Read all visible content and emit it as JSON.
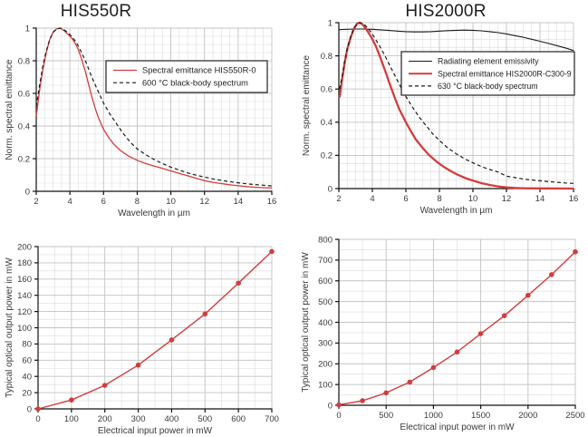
{
  "colors": {
    "red": "#d43c3c",
    "black": "#1a1a1a",
    "axis": "#111111",
    "grid_minor": "#dcdcdc",
    "grid_major": "#c4c4c4",
    "text": "#3a3a3a",
    "legend_text": "#222222"
  },
  "chart_data": [
    {
      "id": "his550r-spectrum",
      "type": "line",
      "title": "HIS550R",
      "xlabel": "Wavelength in µm",
      "ylabel": "Norm. spectral emittance",
      "xlim": [
        2,
        16
      ],
      "ylim": [
        0,
        1
      ],
      "xticks": [
        2,
        4,
        6,
        8,
        10,
        12,
        14,
        16
      ],
      "yticks": [
        0,
        0.2,
        0.4,
        0.6,
        0.8,
        1
      ],
      "ytick_labels": [
        "0",
        "0.2",
        "0.4",
        "0.6",
        "0.8",
        "1"
      ],
      "x_minor": 0.5,
      "y_minor": 0.05,
      "grid": true,
      "legend_visible": true,
      "legend_position": "inside upper right",
      "series": [
        {
          "name": "Spectral emittance HIS550R-0",
          "color": "#d43c3c",
          "dash": false,
          "width": 1.3,
          "markers": false,
          "points": [
            [
              2,
              0.46
            ],
            [
              2.2,
              0.62
            ],
            [
              2.4,
              0.75
            ],
            [
              2.6,
              0.85
            ],
            [
              2.8,
              0.93
            ],
            [
              3,
              0.975
            ],
            [
              3.2,
              0.995
            ],
            [
              3.35,
              1.0
            ],
            [
              3.5,
              0.995
            ],
            [
              3.7,
              0.98
            ],
            [
              3.9,
              0.96
            ],
            [
              4.1,
              0.94
            ],
            [
              4.3,
              0.91
            ],
            [
              4.5,
              0.87
            ],
            [
              4.7,
              0.81
            ],
            [
              4.9,
              0.74
            ],
            [
              5.1,
              0.66
            ],
            [
              5.3,
              0.58
            ],
            [
              5.5,
              0.51
            ],
            [
              5.7,
              0.45
            ],
            [
              6,
              0.38
            ],
            [
              6.3,
              0.33
            ],
            [
              6.6,
              0.29
            ],
            [
              7,
              0.25
            ],
            [
              7.5,
              0.215
            ],
            [
              8,
              0.19
            ],
            [
              8.5,
              0.17
            ],
            [
              9,
              0.155
            ],
            [
              9.5,
              0.14
            ],
            [
              10,
              0.125
            ],
            [
              10.5,
              0.11
            ],
            [
              11,
              0.095
            ],
            [
              11.5,
              0.08
            ],
            [
              12,
              0.065
            ],
            [
              12.5,
              0.055
            ],
            [
              13,
              0.047
            ],
            [
              13.5,
              0.04
            ],
            [
              14,
              0.034
            ],
            [
              14.5,
              0.029
            ],
            [
              15,
              0.025
            ],
            [
              15.5,
              0.022
            ],
            [
              16,
              0.02
            ]
          ]
        },
        {
          "name": "600 °C black-body spectrum",
          "color": "#1a1a1a",
          "dash": true,
          "width": 1.2,
          "markers": false,
          "points": [
            [
              2,
              0.52
            ],
            [
              2.2,
              0.65
            ],
            [
              2.4,
              0.77
            ],
            [
              2.6,
              0.86
            ],
            [
              2.8,
              0.93
            ],
            [
              3,
              0.975
            ],
            [
              3.25,
              0.995
            ],
            [
              3.45,
              1.0
            ],
            [
              3.65,
              0.99
            ],
            [
              3.85,
              0.975
            ],
            [
              4.1,
              0.95
            ],
            [
              4.4,
              0.91
            ],
            [
              4.7,
              0.85
            ],
            [
              5,
              0.78
            ],
            [
              5.3,
              0.7
            ],
            [
              5.6,
              0.63
            ],
            [
              6,
              0.54
            ],
            [
              6.4,
              0.47
            ],
            [
              6.8,
              0.41
            ],
            [
              7.2,
              0.35
            ],
            [
              7.6,
              0.3
            ],
            [
              8,
              0.26
            ],
            [
              8.5,
              0.225
            ],
            [
              9,
              0.195
            ],
            [
              9.5,
              0.17
            ],
            [
              10,
              0.148
            ],
            [
              10.5,
              0.13
            ],
            [
              11,
              0.113
            ],
            [
              11.5,
              0.099
            ],
            [
              12,
              0.087
            ],
            [
              12.5,
              0.076
            ],
            [
              13,
              0.067
            ],
            [
              13.5,
              0.059
            ],
            [
              14,
              0.052
            ],
            [
              14.5,
              0.046
            ],
            [
              15,
              0.041
            ],
            [
              15.5,
              0.037
            ],
            [
              16,
              0.033
            ]
          ]
        }
      ]
    },
    {
      "id": "his2000r-spectrum",
      "type": "line",
      "title": "HIS2000R",
      "xlabel": "Wavelength in µm",
      "ylabel": "Norm. spectral emittance",
      "xlim": [
        2,
        16
      ],
      "ylim": [
        0,
        1
      ],
      "xticks": [
        2,
        4,
        6,
        8,
        10,
        12,
        14,
        16
      ],
      "yticks": [
        0,
        0.2,
        0.4,
        0.6,
        0.8,
        1
      ],
      "ytick_labels": [
        "0",
        "0.2",
        "0.4",
        "0.6",
        "0.8",
        "1"
      ],
      "x_minor": 0.5,
      "y_minor": 0.05,
      "grid": true,
      "legend_visible": true,
      "legend_position": "inside upper right",
      "series": [
        {
          "name": "Radiating element emissivity",
          "color": "#1a1a1a",
          "dash": false,
          "width": 1.1,
          "markers": false,
          "points": [
            [
              2,
              0.958
            ],
            [
              2.5,
              0.96
            ],
            [
              3,
              0.962
            ],
            [
              3.5,
              0.962
            ],
            [
              4,
              0.96
            ],
            [
              4.5,
              0.957
            ],
            [
              5,
              0.953
            ],
            [
              5.5,
              0.949
            ],
            [
              6,
              0.946
            ],
            [
              6.5,
              0.944
            ],
            [
              7,
              0.944
            ],
            [
              7.5,
              0.946
            ],
            [
              8,
              0.949
            ],
            [
              8.5,
              0.952
            ],
            [
              9,
              0.954
            ],
            [
              9.5,
              0.955
            ],
            [
              10,
              0.954
            ],
            [
              10.5,
              0.951
            ],
            [
              11,
              0.946
            ],
            [
              11.5,
              0.94
            ],
            [
              12,
              0.932
            ],
            [
              12.5,
              0.922
            ],
            [
              13,
              0.912
            ],
            [
              13.5,
              0.9
            ],
            [
              14,
              0.888
            ],
            [
              14.5,
              0.875
            ],
            [
              15,
              0.862
            ],
            [
              15.5,
              0.848
            ],
            [
              16,
              0.832
            ]
          ]
        },
        {
          "name": "Spectral emittance HIS2000R-C300-9",
          "color": "#d43c3c",
          "dash": false,
          "width": 2.3,
          "markers": false,
          "points": [
            [
              2.05,
              0.55
            ],
            [
              2.1,
              0.59
            ],
            [
              2.2,
              0.66
            ],
            [
              2.35,
              0.76
            ],
            [
              2.5,
              0.84
            ],
            [
              2.7,
              0.91
            ],
            [
              2.9,
              0.965
            ],
            [
              3.1,
              0.995
            ],
            [
              3.25,
              1.0
            ],
            [
              3.4,
              0.99
            ],
            [
              3.6,
              0.965
            ],
            [
              3.8,
              0.935
            ],
            [
              4,
              0.9
            ],
            [
              4.2,
              0.86
            ],
            [
              4.4,
              0.81
            ],
            [
              4.6,
              0.755
            ],
            [
              4.8,
              0.7
            ],
            [
              5,
              0.64
            ],
            [
              5.2,
              0.585
            ],
            [
              5.4,
              0.53
            ],
            [
              5.6,
              0.48
            ],
            [
              5.8,
              0.44
            ],
            [
              6,
              0.4
            ],
            [
              6.3,
              0.345
            ],
            [
              6.6,
              0.295
            ],
            [
              7,
              0.245
            ],
            [
              7.4,
              0.2
            ],
            [
              7.8,
              0.165
            ],
            [
              8.2,
              0.135
            ],
            [
              8.6,
              0.11
            ],
            [
              9,
              0.088
            ],
            [
              9.5,
              0.065
            ],
            [
              10,
              0.048
            ],
            [
              10.5,
              0.033
            ],
            [
              11,
              0.022
            ],
            [
              11.5,
              0.013
            ],
            [
              12,
              0.007
            ],
            [
              12.5,
              0.004
            ],
            [
              13,
              0.002
            ],
            [
              14,
              0.001
            ],
            [
              15,
              0.0005
            ],
            [
              16,
              0
            ]
          ]
        },
        {
          "name": "630 °C black-body spectrum",
          "color": "#1a1a1a",
          "dash": true,
          "width": 1.2,
          "markers": false,
          "points": [
            [
              2.05,
              0.6
            ],
            [
              2.2,
              0.68
            ],
            [
              2.35,
              0.77
            ],
            [
              2.5,
              0.845
            ],
            [
              2.7,
              0.915
            ],
            [
              2.9,
              0.965
            ],
            [
              3.1,
              0.995
            ],
            [
              3.3,
              1.0
            ],
            [
              3.5,
              0.99
            ],
            [
              3.7,
              0.97
            ],
            [
              3.9,
              0.945
            ],
            [
              4.1,
              0.915
            ],
            [
              4.4,
              0.865
            ],
            [
              4.7,
              0.81
            ],
            [
              5,
              0.75
            ],
            [
              5.3,
              0.69
            ],
            [
              5.6,
              0.63
            ],
            [
              6,
              0.555
            ],
            [
              6.4,
              0.49
            ],
            [
              6.8,
              0.43
            ],
            [
              7.2,
              0.38
            ],
            [
              7.6,
              0.33
            ],
            [
              8,
              0.29
            ],
            [
              8.5,
              0.245
            ],
            [
              9,
              0.21
            ],
            [
              9.5,
              0.18
            ],
            [
              10,
              0.155
            ],
            [
              10.5,
              0.133
            ],
            [
              11,
              0.115
            ],
            [
              11.5,
              0.1
            ],
            [
              12,
              0.075
            ],
            [
              12.5,
              0.066
            ],
            [
              13,
              0.058
            ],
            [
              13.5,
              0.052
            ],
            [
              14,
              0.047
            ],
            [
              14.5,
              0.042
            ],
            [
              15,
              0.038
            ],
            [
              15.5,
              0.034
            ],
            [
              16,
              0.031
            ]
          ]
        }
      ]
    },
    {
      "id": "his550r-power-transfer",
      "type": "line",
      "title": "",
      "xlabel": "Electrical input power in mW",
      "ylabel": "Typical optical output power in mW",
      "xlim": [
        0,
        700
      ],
      "ylim": [
        0,
        200
      ],
      "xticks": [
        0,
        100,
        200,
        300,
        400,
        500,
        600,
        700
      ],
      "yticks": [
        0,
        20,
        40,
        60,
        80,
        100,
        120,
        140,
        160,
        180,
        200
      ],
      "x_minor": 50,
      "y_minor": 10,
      "grid": true,
      "legend_visible": false,
      "series": [
        {
          "name": "Typical optical output power",
          "color": "#d43c3c",
          "dash": false,
          "width": 1.4,
          "markers": true,
          "points": [
            [
              0,
              0
            ],
            [
              100,
              11
            ],
            [
              200,
              29
            ],
            [
              300,
              54
            ],
            [
              400,
              85
            ],
            [
              500,
              117
            ],
            [
              600,
              155
            ],
            [
              700,
              194
            ]
          ]
        }
      ]
    },
    {
      "id": "his2000r-power-transfer",
      "type": "line",
      "title": "",
      "xlabel": "Electrical input power in mW",
      "ylabel": "Typical optical output power in mW",
      "xlim": [
        0,
        2500
      ],
      "ylim": [
        0,
        800
      ],
      "xticks": [
        0,
        500,
        1000,
        1500,
        2000,
        2500
      ],
      "yticks": [
        0,
        100,
        200,
        300,
        400,
        500,
        600,
        700,
        800
      ],
      "x_minor": 250,
      "y_minor": 50,
      "grid": true,
      "legend_visible": false,
      "series": [
        {
          "name": "Typical optical output power",
          "color": "#d43c3c",
          "dash": false,
          "width": 1.4,
          "markers": true,
          "points": [
            [
              0,
              2
            ],
            [
              250,
              22
            ],
            [
              500,
              60
            ],
            [
              750,
              112
            ],
            [
              1000,
              182
            ],
            [
              1250,
              257
            ],
            [
              1500,
              345
            ],
            [
              1750,
              432
            ],
            [
              2000,
              530
            ],
            [
              2250,
              630
            ],
            [
              2500,
              740
            ]
          ]
        }
      ]
    }
  ]
}
